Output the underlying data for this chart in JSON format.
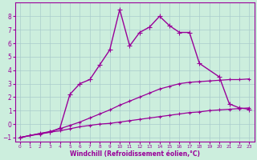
{
  "xlabel": "Windchill (Refroidissement éolien,°C)",
  "bg_color": "#cceedd",
  "line_color": "#990099",
  "grid_color": "#aacccc",
  "xlim": [
    -0.5,
    23.5
  ],
  "ylim": [
    -1.3,
    9.0
  ],
  "xticks": [
    0,
    1,
    2,
    3,
    4,
    5,
    6,
    7,
    8,
    9,
    10,
    11,
    12,
    13,
    14,
    15,
    16,
    17,
    18,
    19,
    20,
    21,
    22,
    23
  ],
  "yticks": [
    -1,
    0,
    1,
    2,
    3,
    4,
    5,
    6,
    7,
    8
  ],
  "series": [
    {
      "x": [
        0,
        1,
        2,
        3,
        4,
        5,
        6,
        7,
        8,
        9,
        10,
        11,
        12,
        13,
        14,
        15,
        16,
        17,
        18,
        19,
        20,
        21,
        22,
        23
      ],
      "y": [
        -1.0,
        -0.85,
        -0.75,
        -0.6,
        -0.5,
        -0.35,
        -0.2,
        -0.1,
        0.0,
        0.05,
        0.15,
        0.25,
        0.35,
        0.45,
        0.55,
        0.65,
        0.75,
        0.85,
        0.9,
        1.0,
        1.05,
        1.1,
        1.15,
        1.2
      ],
      "marker": "+",
      "markersize": 3,
      "linewidth": 0.9
    },
    {
      "x": [
        0,
        1,
        2,
        3,
        4,
        5,
        6,
        7,
        8,
        9,
        10,
        11,
        12,
        13,
        14,
        15,
        16,
        17,
        18,
        19,
        20,
        21,
        22,
        23
      ],
      "y": [
        -1.0,
        -0.85,
        -0.7,
        -0.55,
        -0.35,
        -0.1,
        0.15,
        0.45,
        0.75,
        1.05,
        1.4,
        1.7,
        2.0,
        2.3,
        2.6,
        2.8,
        3.0,
        3.1,
        3.15,
        3.2,
        3.25,
        3.3,
        3.3,
        3.35
      ],
      "marker": "+",
      "markersize": 3,
      "linewidth": 0.9
    },
    {
      "x": [
        0,
        2,
        3,
        4,
        5,
        6,
        7,
        8,
        9,
        10,
        11,
        12,
        13,
        14,
        15,
        16,
        17,
        18,
        20,
        21,
        22,
        23
      ],
      "y": [
        -1.0,
        -0.7,
        -0.6,
        -0.3,
        2.2,
        3.0,
        3.3,
        4.4,
        5.5,
        8.5,
        5.8,
        6.8,
        7.2,
        8.0,
        7.3,
        6.8,
        6.8,
        4.5,
        3.5,
        1.5,
        1.2,
        1.1
      ],
      "marker": "+",
      "markersize": 4,
      "linewidth": 1.0
    }
  ]
}
